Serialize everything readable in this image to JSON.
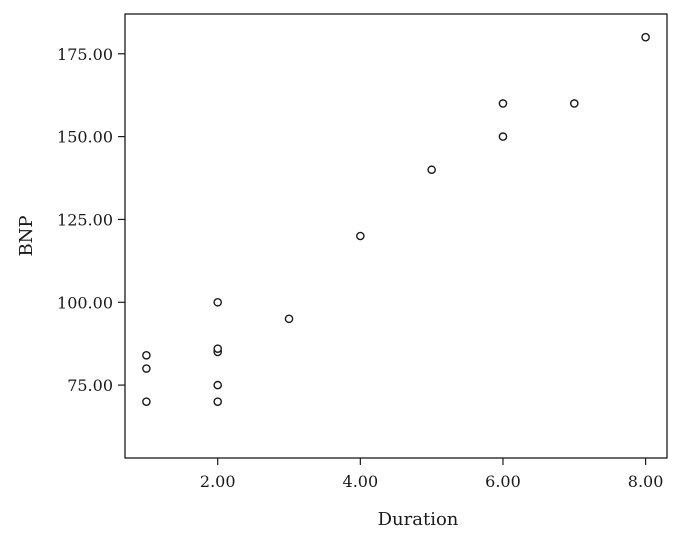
{
  "chart_data": {
    "type": "scatter",
    "title": "",
    "xlabel": "Duration",
    "ylabel": "BNP",
    "xlim": [
      0.7,
      8.3
    ],
    "ylim": [
      53,
      187
    ],
    "grid": false,
    "x_ticks": [
      2.0,
      4.0,
      6.0,
      8.0
    ],
    "x_tick_labels": [
      "2.00",
      "4.00",
      "6.00",
      "8.00"
    ],
    "y_ticks": [
      75,
      100,
      125,
      150,
      175
    ],
    "y_tick_labels": [
      "75.00",
      "100.00",
      "125.00",
      "150.00",
      "175.00"
    ],
    "series": [
      {
        "points": [
          {
            "x": 1,
            "y": 70
          },
          {
            "x": 1,
            "y": 80
          },
          {
            "x": 1,
            "y": 84
          },
          {
            "x": 2,
            "y": 70
          },
          {
            "x": 2,
            "y": 75
          },
          {
            "x": 2,
            "y": 85
          },
          {
            "x": 2,
            "y": 86
          },
          {
            "x": 2,
            "y": 100
          },
          {
            "x": 3,
            "y": 95
          },
          {
            "x": 4,
            "y": 120
          },
          {
            "x": 5,
            "y": 140
          },
          {
            "x": 6,
            "y": 150
          },
          {
            "x": 6,
            "y": 160
          },
          {
            "x": 7,
            "y": 160
          },
          {
            "x": 8,
            "y": 180
          }
        ]
      }
    ]
  }
}
